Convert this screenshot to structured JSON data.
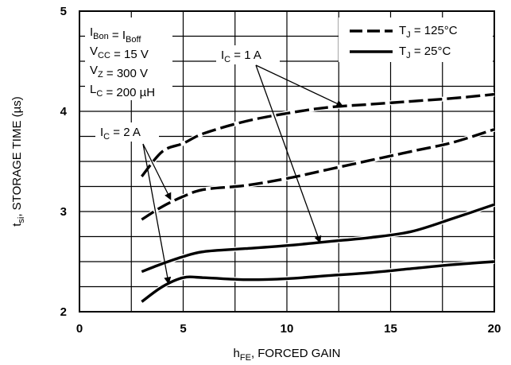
{
  "chart_data": {
    "type": "line",
    "xlabel": {
      "main": "h",
      "sub": "FE",
      "rest": ", FORCED GAIN"
    },
    "ylabel": {
      "main": "t",
      "sub": "si",
      "rest": ", STORAGE TIME (µs)"
    },
    "xlim": [
      0,
      20
    ],
    "ylim": [
      2,
      5
    ],
    "xticks": [
      "0",
      "5",
      "10",
      "15",
      "20"
    ],
    "yticks": [
      "2",
      "3",
      "4",
      "5"
    ],
    "grid": true,
    "conditions": [
      {
        "parts": [
          [
            "I",
            ""
          ],
          [
            "Bon",
            "sub"
          ],
          [
            " = I",
            ""
          ],
          [
            "Boff",
            "sub"
          ]
        ]
      },
      {
        "parts": [
          [
            "V",
            ""
          ],
          [
            "CC",
            "sub"
          ],
          [
            " = 15 V",
            ""
          ]
        ]
      },
      {
        "parts": [
          [
            "V",
            ""
          ],
          [
            "Z",
            "sub"
          ],
          [
            " = 300 V",
            ""
          ]
        ]
      },
      {
        "parts": [
          [
            "L",
            ""
          ],
          [
            "C",
            "sub"
          ],
          [
            " = 200 µH",
            ""
          ]
        ]
      }
    ],
    "legend": {
      "placement": "top-right",
      "entries": [
        {
          "main": "T",
          "sub": "J",
          "rest": " = 125°C",
          "style": "dashed"
        },
        {
          "main": "T",
          "sub": "J",
          "rest": " = 25°C",
          "style": "solid"
        }
      ]
    },
    "annotations": [
      {
        "main": "I",
        "sub": "C",
        "rest": " = 1 A"
      },
      {
        "main": "I",
        "sub": "C",
        "rest": " = 2 A"
      }
    ],
    "series": [
      {
        "condition": "IC = 1 A, TJ = 125°C",
        "style": "dashed",
        "x": [
          3,
          4,
          5,
          6,
          8,
          10,
          12,
          14,
          16,
          18,
          20
        ],
        "y": [
          3.35,
          3.6,
          3.68,
          3.78,
          3.9,
          3.98,
          4.04,
          4.07,
          4.1,
          4.13,
          4.17
        ]
      },
      {
        "condition": "IC = 2 A, TJ = 125°C",
        "style": "dashed",
        "x": [
          3,
          4,
          5,
          6,
          8,
          10,
          12,
          14,
          16,
          18,
          20
        ],
        "y": [
          2.92,
          3.05,
          3.15,
          3.22,
          3.26,
          3.33,
          3.42,
          3.51,
          3.6,
          3.69,
          3.82
        ]
      },
      {
        "condition": "IC = 1 A, TJ = 25°C",
        "style": "solid",
        "x": [
          3,
          4,
          5,
          6,
          8,
          10,
          12,
          14,
          16,
          18,
          20
        ],
        "y": [
          2.4,
          2.48,
          2.55,
          2.6,
          2.63,
          2.66,
          2.7,
          2.74,
          2.8,
          2.93,
          3.07
        ]
      },
      {
        "condition": "IC = 2 A, TJ = 25°C",
        "style": "solid",
        "x": [
          3,
          4,
          5,
          6,
          8,
          10,
          12,
          14,
          16,
          18,
          20
        ],
        "y": [
          2.1,
          2.25,
          2.34,
          2.34,
          2.32,
          2.33,
          2.36,
          2.39,
          2.43,
          2.47,
          2.5
        ]
      }
    ]
  }
}
